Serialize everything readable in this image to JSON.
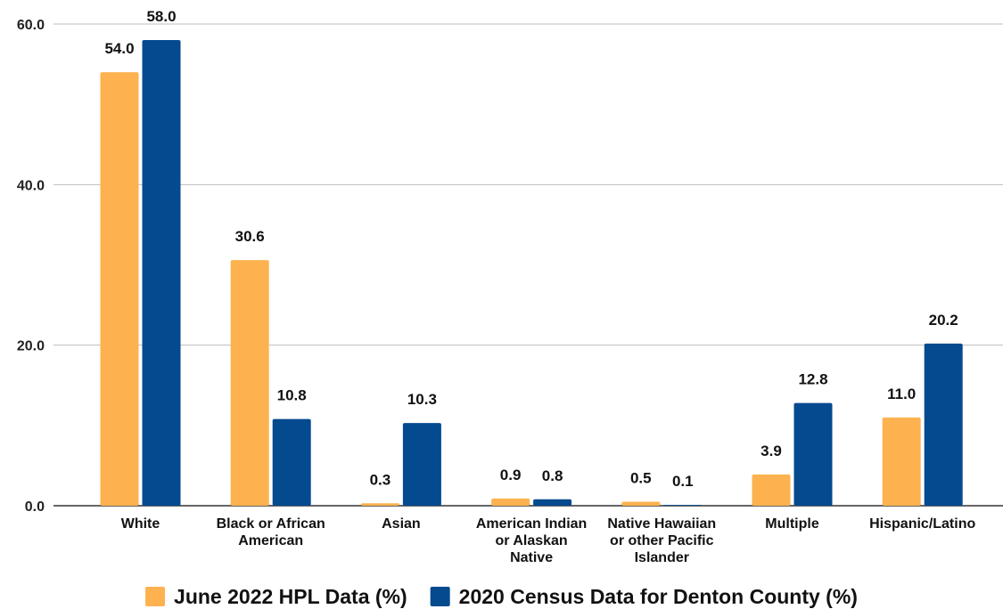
{
  "chart_data": {
    "type": "bar",
    "categories": [
      [
        "White"
      ],
      [
        "Black or African",
        "American"
      ],
      [
        "Asian"
      ],
      [
        "American Indian",
        "or Alaskan",
        "Native"
      ],
      [
        "Native Hawaiian",
        "or other Pacific",
        "Islander"
      ],
      [
        "Multiple"
      ],
      [
        "Hispanic/Latino"
      ]
    ],
    "series": [
      {
        "name": "June 2022 HPL Data (%)",
        "color": "#FDB24F",
        "values": [
          54.0,
          30.6,
          0.3,
          0.9,
          0.5,
          3.9,
          11.0
        ]
      },
      {
        "name": "2020 Census Data for Denton County (%)",
        "color": "#034A8E",
        "values": [
          58.0,
          10.8,
          10.3,
          0.8,
          0.1,
          12.8,
          20.2
        ]
      }
    ],
    "ylim": [
      0,
      60
    ],
    "yticks": [
      "0.0",
      "20.0",
      "40.0",
      "60.0"
    ],
    "grid": true,
    "legend_position": "bottom",
    "title": "",
    "xlabel": "",
    "ylabel": ""
  }
}
